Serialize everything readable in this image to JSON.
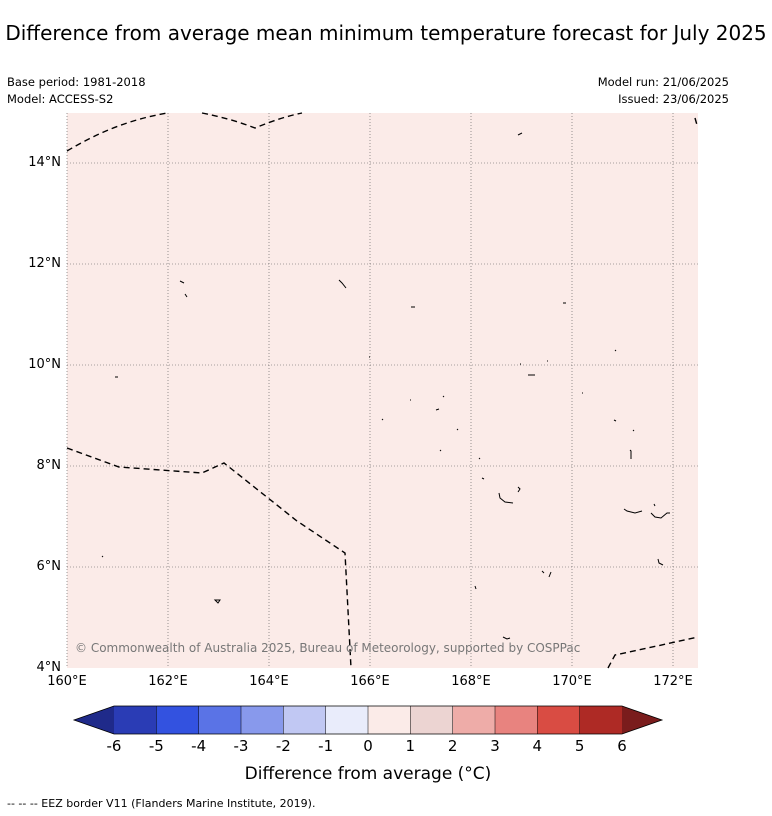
{
  "title": "Difference from average mean minimum temperature forecast for July 2025",
  "meta": {
    "base_period": "Base period: 1981-2018",
    "model": "Model: ACCESS-S2",
    "model_run": "Model run: 21/06/2025",
    "issued": "Issued: 23/06/2025"
  },
  "map": {
    "background_color": "#fbebe8",
    "lat_labels": [
      "14°N",
      "12°N",
      "10°N",
      "8°N",
      "6°N",
      "4°N"
    ],
    "lon_labels": [
      "160°E",
      "162°E",
      "164°E",
      "166°E",
      "168°E",
      "170°E",
      "172°E"
    ],
    "copyright": "© Commonwealth of Australia 2025, Bureau of Meteorology, supported by COSPPac"
  },
  "colorbar": {
    "ticks": [
      "-6",
      "-5",
      "-4",
      "-3",
      "-2",
      "-1",
      "0",
      "1",
      "2",
      "3",
      "4",
      "5",
      "6"
    ],
    "colors": [
      "#1f2a8a",
      "#2a3cb5",
      "#3352e0",
      "#5a73e6",
      "#8899ec",
      "#c1c8f3",
      "#e9ecfb",
      "#fbebe8",
      "#ecd4d2",
      "#eeaca8",
      "#e8837f",
      "#d94c43",
      "#ae2a25",
      "#7a1c1c"
    ],
    "label": "Difference from average (°C)"
  },
  "footnote": "--  --  -- EEZ border V11 (Flanders Marine Institute, 2019)."
}
